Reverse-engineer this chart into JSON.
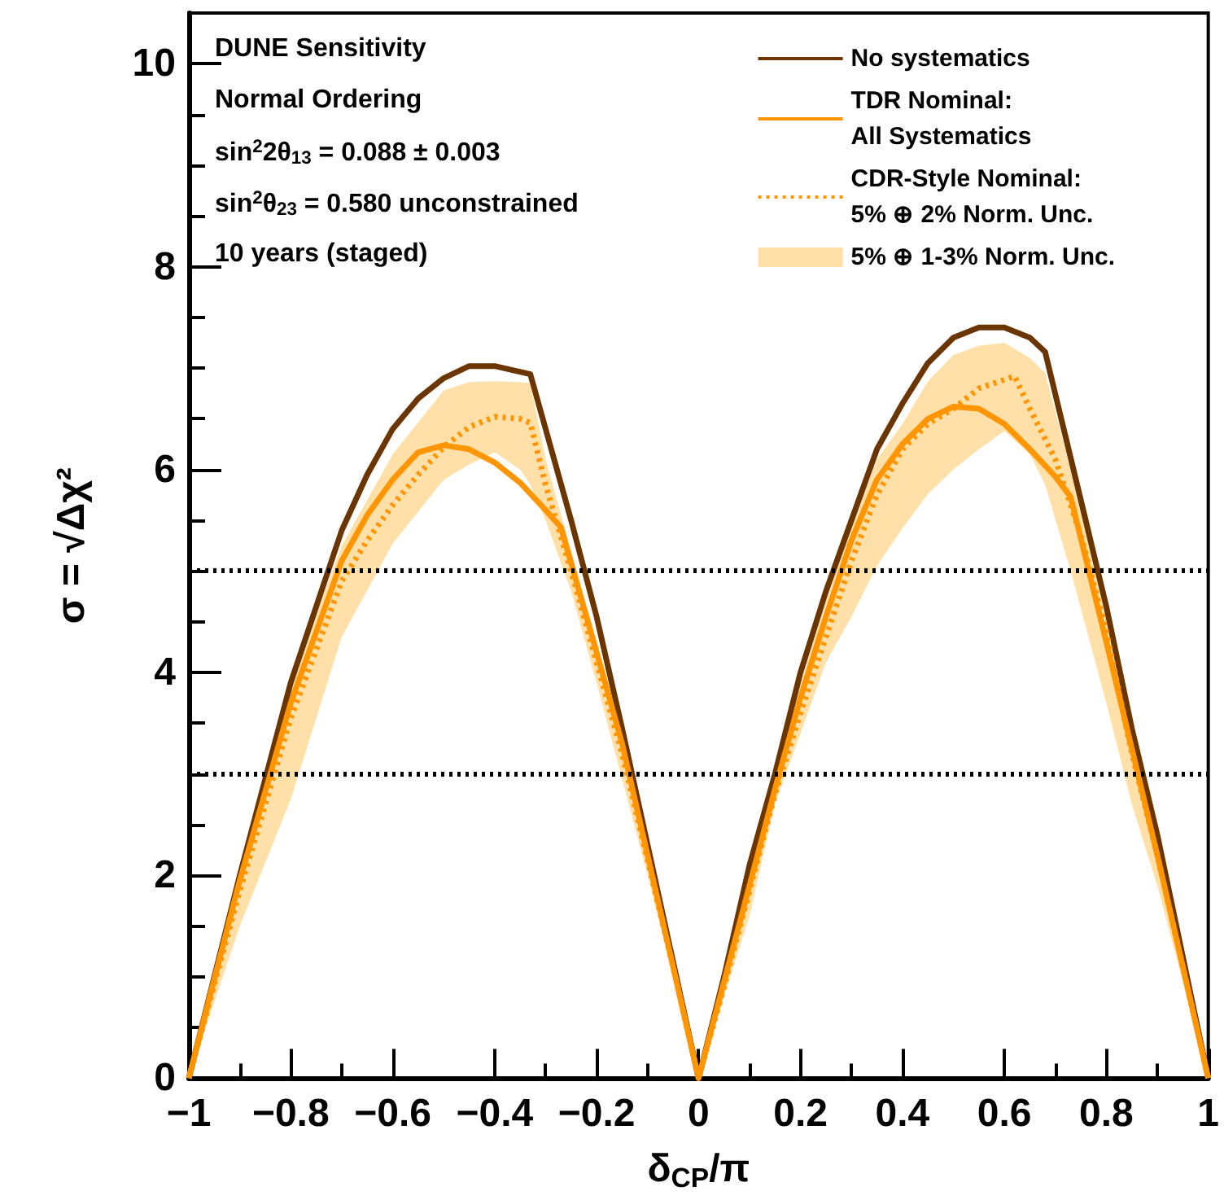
{
  "chart_data": {
    "type": "line",
    "xlabel": "δ$_{CP}$/π",
    "ylabel": "σ = √Δχ²",
    "xlim": [
      -1,
      1
    ],
    "xticks": [
      {
        "value": -1,
        "label": "−1"
      },
      {
        "value": -0.8,
        "label": "−0.8"
      },
      {
        "value": -0.6,
        "label": "−0.6"
      },
      {
        "value": -0.4,
        "label": "−0.4"
      },
      {
        "value": -0.2,
        "label": "−0.2"
      },
      0,
      0.2,
      0.4,
      0.6,
      0.8,
      1
    ],
    "ylim": [
      0,
      10.5
    ],
    "yticks": [
      0,
      2,
      4,
      6,
      8,
      10
    ],
    "grid": false,
    "marker": "none",
    "legend": "top right",
    "annotations": [
      "DUNE Sensitivity",
      "Normal Ordering",
      "sin$^{2}$2θ$_{13}$ = 0.088 ± 0.003",
      "sin$^{2}$θ$_{23}$ = 0.580 unconstrained",
      "10 years (staged)"
    ],
    "ref_lines": [
      {
        "axis": "y",
        "value": 3,
        "color": "#000000",
        "line_style": "dotted"
      },
      {
        "axis": "y",
        "value": 5,
        "color": "#000000",
        "line_style": "dotted"
      }
    ],
    "series": [
      {
        "name": "5% ⊕ 1-3% Norm. Unc.",
        "type": "area",
        "color": "#ffe0a8",
        "x": [
          -1,
          -0.9,
          -0.8,
          -0.7,
          -0.6,
          -0.5,
          -0.45,
          -0.4,
          -0.35,
          -0.33,
          -0.3,
          -0.25,
          -0.2,
          -0.15,
          -0.1,
          -0.05,
          0,
          0.05,
          0.1,
          0.15,
          0.2,
          0.25,
          0.3,
          0.35,
          0.4,
          0.45,
          0.5,
          0.55,
          0.6,
          0.65,
          0.68,
          0.73,
          0.8,
          0.85,
          0.9,
          0.95,
          1
        ],
        "values": [
          null,
          null,
          null,
          null,
          null,
          null,
          null,
          null,
          null,
          null,
          null,
          null,
          null,
          null,
          null,
          null,
          null,
          null,
          null,
          null,
          null,
          null,
          null,
          null,
          null,
          null,
          null,
          null,
          null,
          null,
          null,
          null,
          null,
          null,
          null,
          null,
          null
        ],
        "upper": [
          0,
          2.1,
          3.9,
          5.25,
          6.15,
          6.78,
          6.86,
          6.87,
          6.86,
          6.85,
          6.1,
          5.2,
          4.3,
          3.3,
          2.3,
          1.15,
          0,
          1.0,
          2.0,
          2.95,
          3.9,
          4.7,
          5.45,
          6.1,
          6.45,
          6.87,
          7.13,
          7.22,
          7.25,
          7.1,
          6.95,
          6.0,
          4.6,
          3.4,
          2.3,
          1.15,
          0
        ],
        "lower": [
          0,
          1.5,
          2.75,
          4.35,
          5.27,
          5.9,
          6.05,
          6.17,
          6.0,
          5.85,
          5.5,
          4.8,
          3.9,
          2.95,
          2.0,
          1.0,
          0,
          0.8,
          1.6,
          2.7,
          3.4,
          4.1,
          4.55,
          5.05,
          5.42,
          5.76,
          6.0,
          6.2,
          6.38,
          6.15,
          5.85,
          5.0,
          3.7,
          2.7,
          1.9,
          0.95,
          0
        ]
      },
      {
        "name": "No systematics",
        "color": "#6b3500",
        "line_style": "solid",
        "x": [
          -1,
          -0.9,
          -0.8,
          -0.7,
          -0.65,
          -0.6,
          -0.55,
          -0.5,
          -0.45,
          -0.4,
          -0.33,
          -0.3,
          -0.25,
          -0.2,
          -0.15,
          -0.1,
          -0.05,
          0,
          0.05,
          0.1,
          0.15,
          0.2,
          0.25,
          0.3,
          0.35,
          0.4,
          0.45,
          0.5,
          0.55,
          0.6,
          0.65,
          0.68,
          0.75,
          0.8,
          0.85,
          0.9,
          0.95,
          1
        ],
        "values": [
          0,
          2.0,
          3.9,
          5.4,
          5.95,
          6.4,
          6.7,
          6.9,
          7.02,
          7.02,
          6.94,
          6.4,
          5.5,
          4.55,
          3.45,
          2.3,
          1.15,
          0,
          1.0,
          2.1,
          3.0,
          4.0,
          4.8,
          5.5,
          6.2,
          6.65,
          7.05,
          7.3,
          7.4,
          7.4,
          7.3,
          7.16,
          5.7,
          4.65,
          3.45,
          2.4,
          1.2,
          0
        ]
      },
      {
        "name": "TDR Nominal:\nAll Systematics",
        "color": "#ff9500",
        "line_style": "solid",
        "x": [
          -1,
          -0.9,
          -0.8,
          -0.7,
          -0.65,
          -0.6,
          -0.55,
          -0.5,
          -0.45,
          -0.4,
          -0.35,
          -0.3,
          -0.27,
          -0.2,
          -0.15,
          -0.1,
          -0.05,
          0,
          0.05,
          0.1,
          0.15,
          0.2,
          0.25,
          0.3,
          0.35,
          0.4,
          0.45,
          0.5,
          0.55,
          0.6,
          0.65,
          0.7,
          0.73,
          0.8,
          0.85,
          0.9,
          0.95,
          1
        ],
        "values": [
          0,
          1.95,
          3.7,
          5.1,
          5.55,
          5.9,
          6.17,
          6.24,
          6.2,
          6.07,
          5.87,
          5.6,
          5.43,
          4.2,
          3.3,
          2.2,
          1.1,
          0,
          0.95,
          1.9,
          2.85,
          3.75,
          4.55,
          5.3,
          5.9,
          6.25,
          6.5,
          6.62,
          6.6,
          6.45,
          6.2,
          5.93,
          5.73,
          4.3,
          3.25,
          2.2,
          1.1,
          0
        ]
      },
      {
        "name": "CDR-Style Nominal:\n5% ⊕ 2% Norm. Unc.",
        "color": "#ff9500",
        "line_style": "dotted",
        "x": [
          -1,
          -0.9,
          -0.8,
          -0.7,
          -0.65,
          -0.6,
          -0.55,
          -0.5,
          -0.45,
          -0.4,
          -0.35,
          -0.33,
          -0.3,
          -0.25,
          -0.2,
          -0.15,
          -0.1,
          -0.05,
          0,
          0.05,
          0.1,
          0.15,
          0.2,
          0.25,
          0.3,
          0.35,
          0.4,
          0.45,
          0.5,
          0.55,
          0.62,
          0.65,
          0.7,
          0.75,
          0.8,
          0.85,
          0.9,
          0.95,
          1
        ],
        "values": [
          0,
          1.85,
          3.55,
          4.9,
          5.3,
          5.65,
          5.95,
          6.22,
          6.42,
          6.52,
          6.5,
          6.46,
          5.85,
          5.0,
          4.1,
          3.2,
          2.15,
          1.1,
          0,
          0.9,
          1.85,
          2.8,
          3.6,
          4.35,
          5.1,
          5.75,
          6.2,
          6.45,
          6.6,
          6.8,
          6.92,
          6.6,
          6.1,
          5.35,
          4.4,
          3.2,
          2.2,
          1.1,
          0
        ]
      }
    ]
  }
}
